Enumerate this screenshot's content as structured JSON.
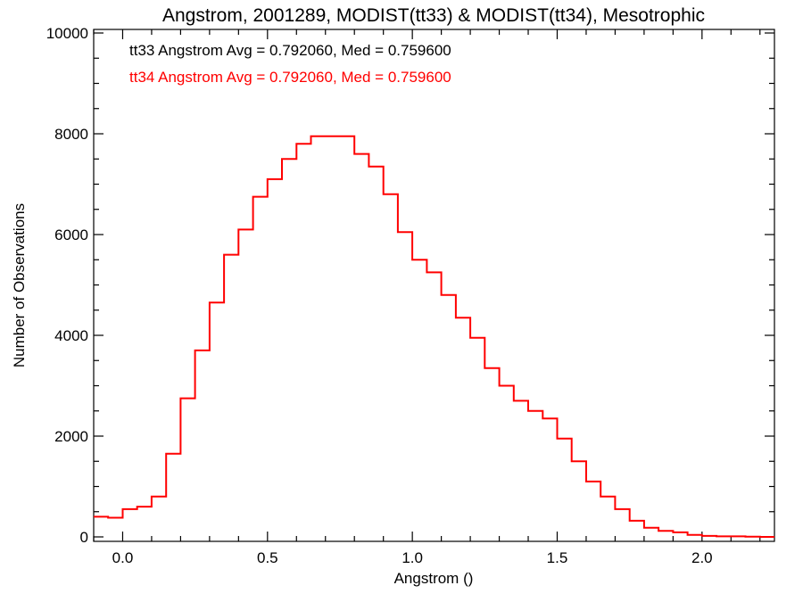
{
  "chart_data": {
    "type": "line",
    "title": "Angstrom, 2001289, MODIST(tt33) & MODIST(tt34), Mesotrophic",
    "xlabel": "Angstrom ()",
    "ylabel": "Number of Observations",
    "xlim": [
      -0.1,
      2.25
    ],
    "ylim": [
      0,
      10000
    ],
    "x_ticks": [
      0.0,
      0.5,
      1.0,
      1.5,
      2.0
    ],
    "x_tick_labels": [
      "0.0",
      "0.5",
      "1.0",
      "1.5",
      "2.0"
    ],
    "y_ticks": [
      0,
      2000,
      4000,
      6000,
      8000,
      10000
    ],
    "y_tick_labels": [
      "0",
      "2000",
      "4000",
      "6000",
      "8000",
      "10000"
    ],
    "grid": false,
    "legend_position": "top-left",
    "annotations": [
      {
        "text": "tt33 Angstrom Avg = 0.792060, Med = 0.759600",
        "color": "#000000"
      },
      {
        "text": "tt34 Angstrom Avg = 0.792060, Med = 0.759600",
        "color": "#ff0000"
      }
    ],
    "series": [
      {
        "color": "#ff0000",
        "x": [
          -0.1,
          -0.05,
          0.0,
          0.05,
          0.1,
          0.15,
          0.2,
          0.25,
          0.3,
          0.35,
          0.4,
          0.45,
          0.5,
          0.55,
          0.6,
          0.65,
          0.7,
          0.75,
          0.8,
          0.85,
          0.9,
          0.95,
          1.0,
          1.05,
          1.1,
          1.15,
          1.2,
          1.25,
          1.3,
          1.35,
          1.4,
          1.45,
          1.5,
          1.55,
          1.6,
          1.65,
          1.7,
          1.75,
          1.8,
          1.85,
          1.9,
          1.95,
          2.0,
          2.05,
          2.1,
          2.15,
          2.2,
          2.25
        ],
        "y": [
          400,
          380,
          550,
          600,
          800,
          1650,
          2750,
          3700,
          4650,
          5600,
          6100,
          6750,
          7100,
          7500,
          7800,
          7950,
          7950,
          7950,
          7600,
          7350,
          6800,
          6050,
          5500,
          5250,
          4800,
          4350,
          3950,
          3350,
          3000,
          2700,
          2500,
          2350,
          1950,
          1500,
          1100,
          800,
          550,
          320,
          180,
          120,
          90,
          40,
          20,
          10,
          10,
          5,
          0,
          0
        ]
      }
    ]
  }
}
